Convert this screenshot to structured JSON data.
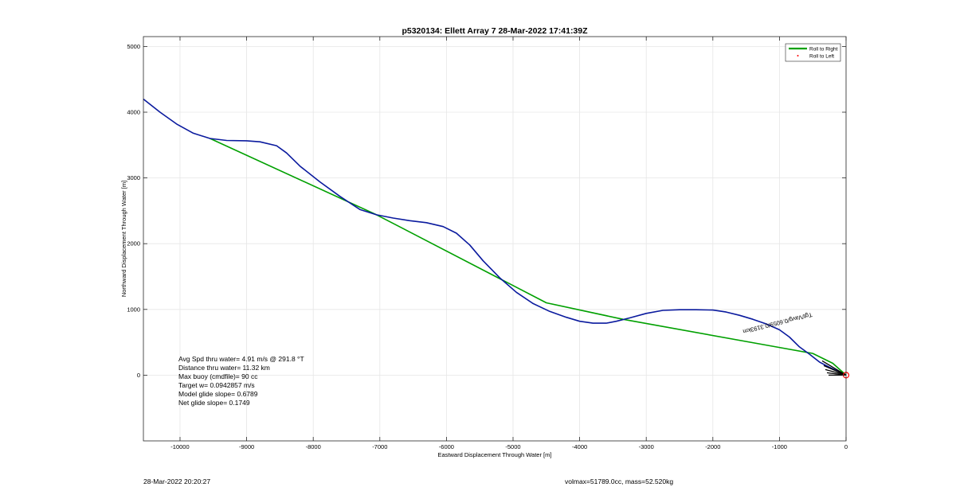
{
  "chart_data": {
    "type": "line",
    "title": "p5320134: Ellett Array 7 28-Mar-2022 17:41:39Z",
    "xlabel": "Eastward Displacement Through Water [m]",
    "ylabel": "Northward Displacement Through Water [m]",
    "xlim": [
      -10550,
      0
    ],
    "ylim": [
      -1000,
      5150
    ],
    "grid": true,
    "legend_position": "top-right",
    "x_ticks": [
      -10000,
      -9000,
      -8000,
      -7000,
      -6000,
      -5000,
      -4000,
      -3000,
      -2000,
      -1000,
      0
    ],
    "y_ticks": [
      0,
      1000,
      2000,
      3000,
      4000,
      5000
    ],
    "legend": [
      {
        "label": "Roll to Right",
        "color": "#00a000",
        "marker": "line"
      },
      {
        "label": "Roll to Left",
        "color": "#ff0000",
        "marker": "dot"
      }
    ],
    "series": [
      {
        "color": "#0a1a9e",
        "x": [
          -10550,
          -10300,
          -10050,
          -9800,
          -9550,
          -9300,
          -9000,
          -8800,
          -8550,
          -8400,
          -8200,
          -7900,
          -7600,
          -7300,
          -7050,
          -6800,
          -6550,
          -6300,
          -6050,
          -5850,
          -5650,
          -5450,
          -5200,
          -4950,
          -4700,
          -4450,
          -4200,
          -4000,
          -3800,
          -3600,
          -3450,
          -3250,
          -3000,
          -2750,
          -2500,
          -2250,
          -2000,
          -1800,
          -1600,
          -1400,
          -1200,
          -1000,
          -850,
          -700,
          -550,
          -400,
          -250,
          -100,
          0
        ],
        "y": [
          4200,
          4000,
          3820,
          3680,
          3600,
          3570,
          3565,
          3550,
          3490,
          3380,
          3180,
          2940,
          2720,
          2520,
          2440,
          2390,
          2350,
          2320,
          2260,
          2160,
          1980,
          1740,
          1480,
          1260,
          1090,
          970,
          880,
          820,
          790,
          790,
          820,
          870,
          940,
          985,
          995,
          995,
          990,
          960,
          910,
          850,
          780,
          690,
          580,
          430,
          320,
          200,
          120,
          50,
          0
        ]
      },
      {
        "color": "#00a000",
        "x": [
          -9550,
          -7050,
          -4500,
          -3350,
          -1100,
          -500,
          -200,
          0
        ],
        "y": [
          3600,
          2440,
          1100,
          850,
          440,
          330,
          180,
          0
        ]
      }
    ],
    "current_label": "Tgt/Vavg/0.6059/0.3193km",
    "current_color": "#000000",
    "endpoint_marker_color": "#ff0000",
    "stats": [
      "Avg Spd thru water=  4.91 m/s @ 291.8 °T",
      "Distance thru water= 11.32 km",
      "Max buoy (cmdfile)= 90 cc",
      "Target w= 0.0942857 m/s",
      "Model glide slope= 0.6789",
      "Net glide slope= 0.1749"
    ]
  },
  "footer": {
    "timestamp": "28-Mar-2022 20:20:27",
    "vol_mass": "volmax=51789.0cc, mass=52.520kg"
  }
}
